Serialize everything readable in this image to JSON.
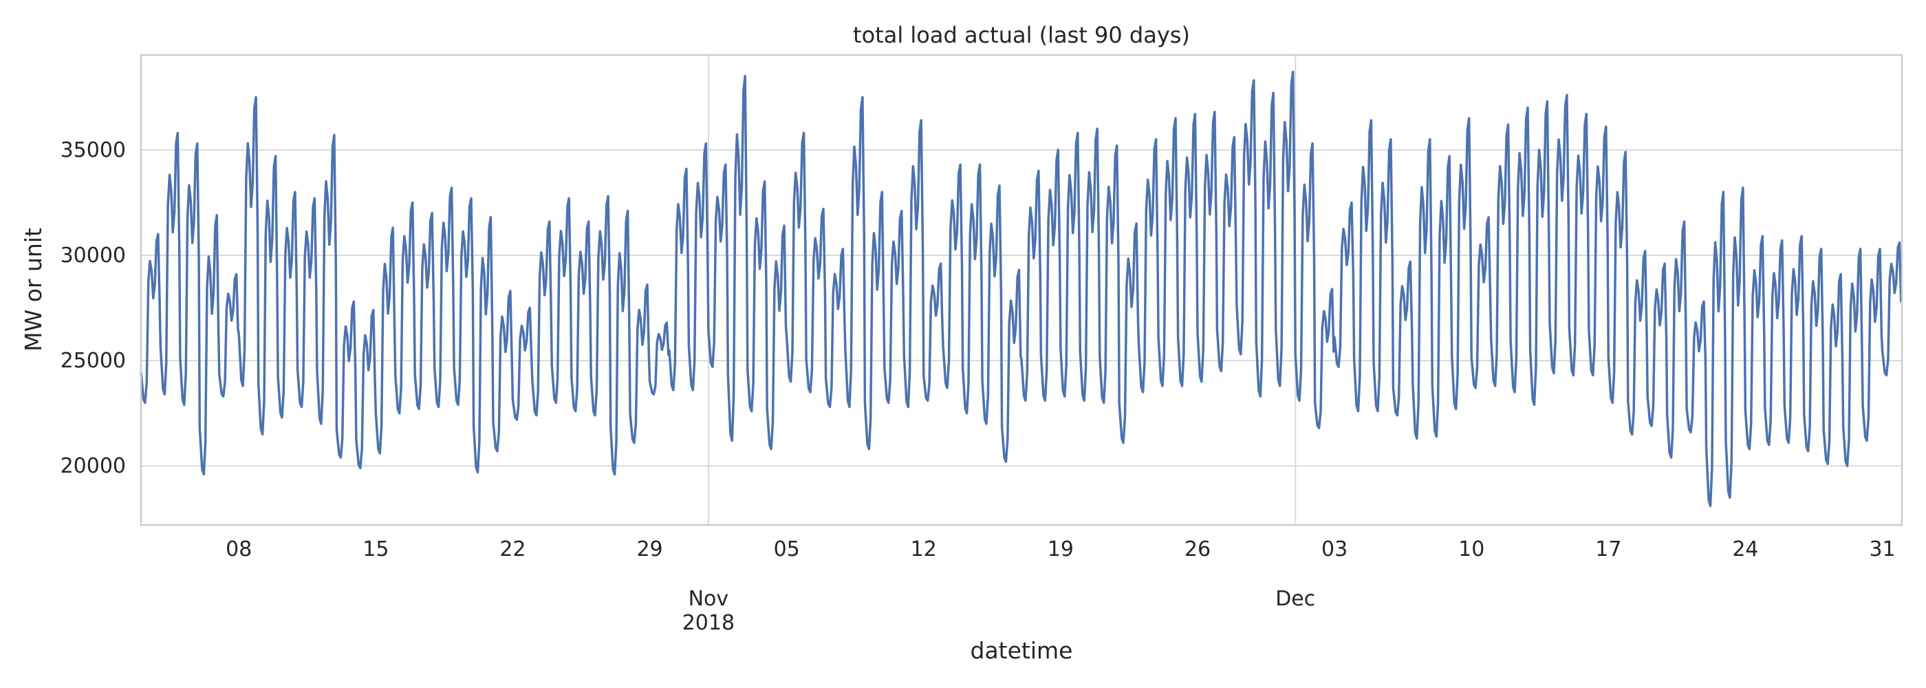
{
  "chart_data": {
    "type": "line",
    "title": "total load actual (last 90 days)",
    "xlabel": "datetime",
    "ylabel": "MW or unit",
    "grid": true,
    "legend": "none",
    "color": "#4c72b0",
    "x_range": [
      "2018-10-03",
      "2019-01-01"
    ],
    "ylim": [
      17200,
      39500
    ],
    "y_ticks": [
      20000,
      25000,
      30000,
      35000
    ],
    "y_tick_labels": [
      "20000",
      "25000",
      "30000",
      "35000"
    ],
    "x_minor_ticks": [
      {
        "date": "2018-10-08",
        "label": "08"
      },
      {
        "date": "2018-10-15",
        "label": "15"
      },
      {
        "date": "2018-10-22",
        "label": "22"
      },
      {
        "date": "2018-10-29",
        "label": "29"
      },
      {
        "date": "2018-11-05",
        "label": "05"
      },
      {
        "date": "2018-11-12",
        "label": "12"
      },
      {
        "date": "2018-11-19",
        "label": "19"
      },
      {
        "date": "2018-11-26",
        "label": "26"
      },
      {
        "date": "2018-12-03",
        "label": "03"
      },
      {
        "date": "2018-12-10",
        "label": "10"
      },
      {
        "date": "2018-12-17",
        "label": "17"
      },
      {
        "date": "2018-12-24",
        "label": "24"
      },
      {
        "date": "2018-12-31",
        "label": "31"
      }
    ],
    "x_major_ticks": [
      {
        "date": "2018-11-01",
        "label": "Nov",
        "sublabel": "2018"
      },
      {
        "date": "2018-12-01",
        "label": "Dec",
        "sublabel": ""
      }
    ],
    "series": [
      {
        "date": [
          "2018-10-03",
          "2018-10-04",
          "2018-10-05",
          "2018-10-06",
          "2018-10-07",
          "2018-10-08",
          "2018-10-09",
          "2018-10-10",
          "2018-10-11",
          "2018-10-12",
          "2018-10-13",
          "2018-10-14",
          "2018-10-15",
          "2018-10-16",
          "2018-10-17",
          "2018-10-18",
          "2018-10-19",
          "2018-10-20",
          "2018-10-21",
          "2018-10-22",
          "2018-10-23",
          "2018-10-24",
          "2018-10-25",
          "2018-10-26",
          "2018-10-27",
          "2018-10-28",
          "2018-10-29",
          "2018-10-30",
          "2018-10-31",
          "2018-11-01",
          "2018-11-02",
          "2018-11-03",
          "2018-11-04",
          "2018-11-05",
          "2018-11-06",
          "2018-11-07",
          "2018-11-08",
          "2018-11-09",
          "2018-11-10",
          "2018-11-11",
          "2018-11-12",
          "2018-11-13",
          "2018-11-14",
          "2018-11-15",
          "2018-11-16",
          "2018-11-17",
          "2018-11-18",
          "2018-11-19",
          "2018-11-20",
          "2018-11-21",
          "2018-11-22",
          "2018-11-23",
          "2018-11-24",
          "2018-11-25",
          "2018-11-26",
          "2018-11-27",
          "2018-11-28",
          "2018-11-29",
          "2018-11-30",
          "2018-12-01",
          "2018-12-02",
          "2018-12-03",
          "2018-12-04",
          "2018-12-05",
          "2018-12-06",
          "2018-12-07",
          "2018-12-08",
          "2018-12-09",
          "2018-12-10",
          "2018-12-11",
          "2018-12-12",
          "2018-12-13",
          "2018-12-14",
          "2018-12-15",
          "2018-12-16",
          "2018-12-17",
          "2018-12-18",
          "2018-12-19",
          "2018-12-20",
          "2018-12-21",
          "2018-12-22",
          "2018-12-23",
          "2018-12-24",
          "2018-12-25",
          "2018-12-26",
          "2018-12-27",
          "2018-12-28",
          "2018-12-29",
          "2018-12-30",
          "2018-12-31"
        ],
        "daily_max": [
          31000,
          35800,
          35300,
          31900,
          29100,
          37500,
          34700,
          33000,
          32700,
          35700,
          27800,
          27400,
          31300,
          32500,
          32000,
          33200,
          32700,
          31800,
          28300,
          27500,
          31600,
          32700,
          31600,
          32800,
          32100,
          28600,
          26800,
          34100,
          35300,
          34300,
          38500,
          33500,
          31400,
          35800,
          32200,
          30300,
          37500,
          33000,
          32100,
          36400,
          29600,
          34300,
          34300,
          33300,
          29300,
          34000,
          35000,
          35800,
          36000,
          35200,
          31500,
          35500,
          36500,
          36700,
          36800,
          35600,
          38300,
          37700,
          38700,
          35300,
          28400,
          32500,
          36400,
          35500,
          29700,
          35500,
          34700,
          36500,
          31800,
          36200,
          37000,
          37300,
          37600,
          36700,
          36100,
          34900,
          30200,
          29600,
          31600,
          27800,
          33000,
          33200,
          30900,
          30700,
          30900,
          30300,
          29100,
          30300,
          30300,
          30600
        ],
        "daily_min": [
          23000,
          23400,
          22900,
          19600,
          23300,
          23800,
          21500,
          22300,
          22800,
          22000,
          20400,
          19900,
          20600,
          22500,
          22700,
          22800,
          22900,
          19700,
          20700,
          22200,
          22400,
          23000,
          22600,
          22400,
          19600,
          21100,
          23400,
          23600,
          23600,
          24700,
          21200,
          22600,
          20800,
          24000,
          23500,
          22800,
          22800,
          20800,
          23000,
          22800,
          23100,
          23700,
          22500,
          22000,
          20200,
          23100,
          23100,
          23300,
          23100,
          23000,
          21100,
          23500,
          23800,
          23800,
          24000,
          24500,
          25300,
          23300,
          23800,
          23100,
          21800,
          24700,
          22600,
          22600,
          22400,
          21300,
          21400,
          22700,
          23700,
          23800,
          23500,
          22900,
          24400,
          24300,
          24300,
          23000,
          21500,
          21900,
          20400,
          21600,
          18100,
          18500,
          20800,
          21000,
          21100,
          20700,
          20100,
          20000,
          21200,
          24300
        ]
      }
    ]
  }
}
